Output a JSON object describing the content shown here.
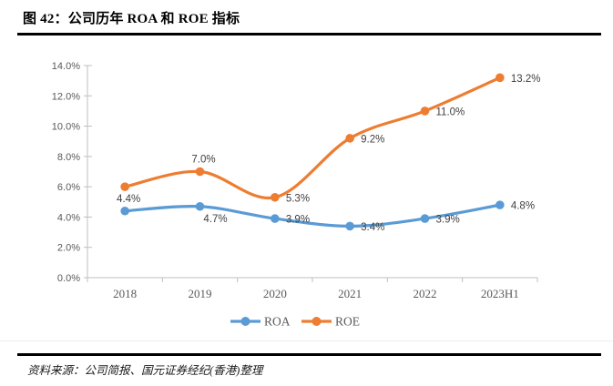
{
  "header": {
    "title": "图 42：公司历年 ROA 和 ROE 指标"
  },
  "footer": {
    "source": "资料来源：公司简报、国元证券经纪(香港)整理"
  },
  "chart_data": {
    "type": "line",
    "title": "",
    "categories": [
      "2018",
      "2019",
      "2020",
      "2021",
      "2022",
      "2023H1"
    ],
    "series": [
      {
        "name": "ROA",
        "color": "#5B9BD5",
        "values": [
          4.4,
          4.7,
          3.9,
          3.4,
          3.9,
          4.8
        ],
        "labels": [
          "4.4%",
          "4.7%",
          "3.9%",
          "3.4%",
          "3.9%",
          "4.8%"
        ],
        "label_pos": [
          "above",
          "below",
          "right",
          "right",
          "right",
          "right"
        ]
      },
      {
        "name": "ROE",
        "color": "#ED7D31",
        "values": [
          6.0,
          7.0,
          5.3,
          9.2,
          11.0,
          13.2
        ],
        "labels": [
          "",
          "7.0%",
          "5.3%",
          "9.2%",
          "11.0%",
          "13.2%"
        ],
        "label_pos": [
          "none",
          "above",
          "right",
          "right",
          "right",
          "right"
        ]
      }
    ],
    "xlabel": "",
    "ylabel": "",
    "ylim": [
      0,
      14
    ],
    "ytick_step": 2,
    "yticklabels": [
      "0.0%",
      "2.0%",
      "4.0%",
      "6.0%",
      "8.0%",
      "10.0%",
      "12.0%",
      "14.0%"
    ],
    "grid": false,
    "line_smooth": true,
    "legend_position": "bottom-center",
    "axis_color": "#BFBFBF",
    "tick_label_color": "#595959",
    "data_label_color": "#404040"
  }
}
